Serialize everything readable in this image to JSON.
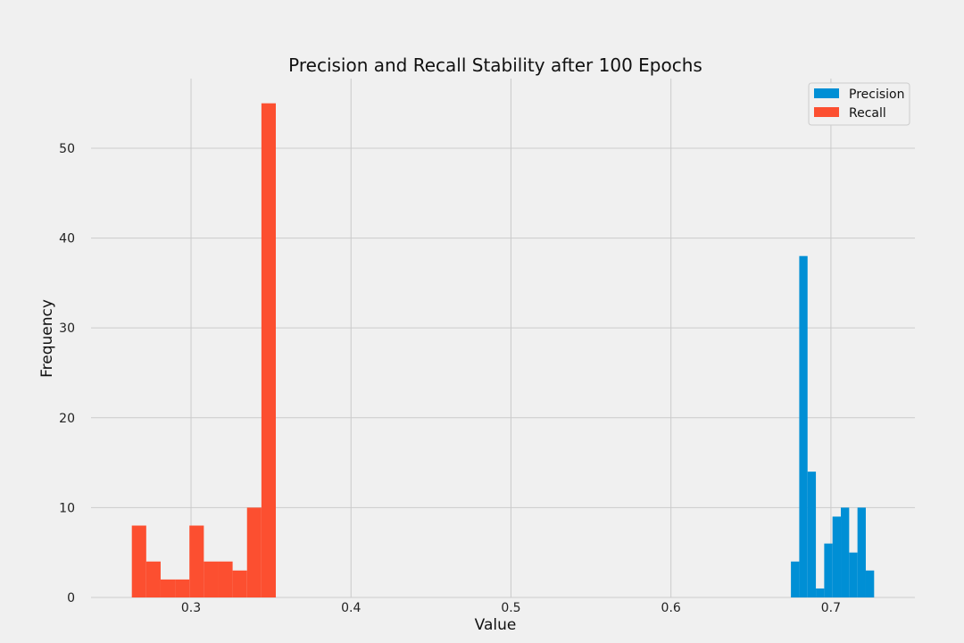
{
  "chart_data": {
    "type": "bar",
    "subtype": "histogram",
    "title": "Precision and Recall Stability after 100 Epochs",
    "xlabel": "Value",
    "ylabel": "Frequency",
    "xlim": [
      0.2375,
      0.7525
    ],
    "ylim": [
      0,
      57.75
    ],
    "xticks": [
      0.3,
      0.4,
      0.5,
      0.6,
      0.7
    ],
    "xtick_labels": [
      "0.3",
      "0.4",
      "0.5",
      "0.6",
      "0.7"
    ],
    "yticks": [
      0,
      10,
      20,
      30,
      40,
      50
    ],
    "ytick_labels": [
      "0",
      "10",
      "20",
      "30",
      "40",
      "50"
    ],
    "grid": true,
    "legend_position": "top-right",
    "series": [
      {
        "name": "Precision",
        "color": "#008fd5",
        "bin_edges": [
          0.675,
          0.6802,
          0.6854,
          0.6906,
          0.6958,
          0.701,
          0.7062,
          0.7114,
          0.7166,
          0.7218,
          0.727
        ],
        "counts": [
          4,
          38,
          14,
          1,
          6,
          9,
          10,
          5,
          10,
          3
        ]
      },
      {
        "name": "Recall",
        "color": "#fc4f30",
        "bin_edges": [
          0.263,
          0.272,
          0.281,
          0.29,
          0.299,
          0.308,
          0.317,
          0.326,
          0.335,
          0.344,
          0.353
        ],
        "counts": [
          8,
          4,
          2,
          2,
          8,
          4,
          4,
          3,
          10,
          55
        ]
      }
    ]
  }
}
